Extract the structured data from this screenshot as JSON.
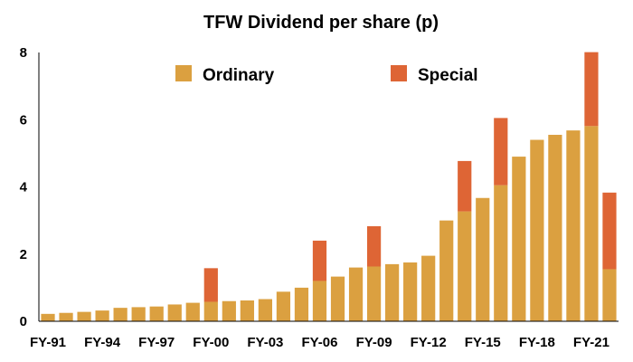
{
  "chart_data": {
    "type": "bar",
    "stacked": true,
    "title": "TFW Dividend per share (p)",
    "xlabel": "",
    "ylabel": "",
    "ylim": [
      0,
      8
    ],
    "yticks": [
      0,
      2,
      4,
      6,
      8
    ],
    "grid": false,
    "legend_position": "top",
    "categories": [
      "FY-91",
      "FY-92",
      "FY-93",
      "FY-94",
      "FY-95",
      "FY-96",
      "FY-97",
      "FY-98",
      "FY-99",
      "FY-00",
      "FY-01",
      "FY-02",
      "FY-03",
      "FY-04",
      "FY-05",
      "FY-06",
      "FY-07",
      "FY-08",
      "FY-09",
      "FY-10",
      "FY-11",
      "FY-12",
      "FY-13",
      "FY-14",
      "FY-15",
      "FY-16",
      "FY-17",
      "FY-18",
      "FY-19",
      "FY-20",
      "FY-21",
      "FY-22"
    ],
    "x_tick_labels": [
      "FY-91",
      "FY-94",
      "FY-97",
      "FY-00",
      "FY-03",
      "FY-06",
      "FY-09",
      "FY-12",
      "FY-15",
      "FY-18",
      "FY-21"
    ],
    "series": [
      {
        "name": "Ordinary",
        "color": "#dba040",
        "values": [
          0.22,
          0.25,
          0.28,
          0.32,
          0.4,
          0.42,
          0.44,
          0.5,
          0.55,
          0.58,
          0.6,
          0.62,
          0.66,
          0.88,
          1.0,
          1.2,
          1.33,
          1.6,
          1.63,
          1.7,
          1.75,
          1.95,
          3.0,
          3.27,
          3.67,
          4.05,
          4.9,
          5.4,
          5.55,
          5.68,
          5.81,
          1.55
        ]
      },
      {
        "name": "Special",
        "color": "#de6535",
        "values": [
          0,
          0,
          0,
          0,
          0,
          0,
          0,
          0,
          0,
          1.0,
          0,
          0,
          0,
          0,
          0,
          1.2,
          0,
          0,
          1.2,
          0,
          0,
          0,
          0,
          1.5,
          0,
          2.0,
          0,
          0,
          0,
          0,
          2.2,
          2.28
        ]
      }
    ]
  }
}
